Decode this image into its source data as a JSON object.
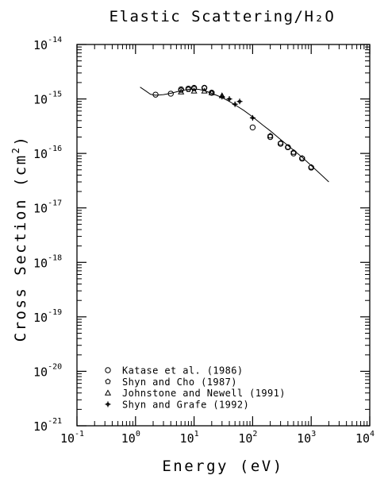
{
  "chart_data": {
    "type": "scatter",
    "title": "Elastic Scattering/H₂O",
    "xlabel": "Energy (eV)",
    "ylabel_prefix": "Cross Section (cm",
    "ylabel_exponent": "2",
    "ylabel_suffix": ")",
    "x_scale": "log",
    "y_scale": "log",
    "xlim": [
      0.1,
      10000
    ],
    "ylim": [
      1e-21,
      1e-14
    ],
    "x_tick_base": "10",
    "x_tick_exponents": [
      "-1",
      "0",
      "1",
      "2",
      "3",
      "4"
    ],
    "y_tick_base": "10",
    "y_tick_exponents": [
      "-21",
      "-20",
      "-19",
      "-18",
      "-17",
      "-16",
      "-15",
      "-14"
    ],
    "grid": false,
    "legend_position": "bottom-left",
    "series": [
      {
        "name": "Katase et al. (1986)",
        "marker": "circle",
        "x": [
          2.2,
          4,
          6,
          8,
          10,
          15,
          20,
          100,
          200,
          300,
          400,
          500,
          700,
          1000
        ],
        "y": [
          1.2e-15,
          1.25e-15,
          1.5e-15,
          1.55e-15,
          1.6e-15,
          1.6e-15,
          1.3e-15,
          3e-16,
          2e-16,
          1.5e-16,
          1.3e-16,
          1e-16,
          8e-17,
          5.5e-17
        ]
      },
      {
        "name": "Shyn and Cho (1987)",
        "marker": "pentagon",
        "x": [
          6,
          8,
          10,
          15,
          20,
          200,
          300,
          400,
          500,
          700,
          1000
        ],
        "y": [
          1.45e-15,
          1.5e-15,
          1.55e-15,
          1.6e-15,
          1.3e-15,
          2.1e-16,
          1.55e-16,
          1.3e-16,
          1.05e-16,
          8.2e-17,
          5.6e-17
        ]
      },
      {
        "name": "Johnstone and Newell (1991)",
        "marker": "triangle",
        "x": [
          6,
          10,
          15,
          20,
          30
        ],
        "y": [
          1.35e-15,
          1.4e-15,
          1.4e-15,
          1.3e-15,
          1.15e-15
        ]
      },
      {
        "name": "Shyn and Grafe (1992)",
        "marker": "plus",
        "x": [
          30,
          40,
          50,
          60,
          100
        ],
        "y": [
          1.1e-15,
          1e-15,
          8e-16,
          9e-16,
          4.5e-16
        ]
      }
    ],
    "fit_curve": {
      "x": [
        1.2,
        1.5,
        1.8,
        2.2,
        3,
        4,
        5,
        6,
        8,
        10,
        12,
        15,
        20,
        25,
        30,
        40,
        50,
        70,
        100,
        150,
        200,
        300,
        400,
        500,
        700,
        1000,
        1500,
        2000
      ],
      "y": [
        1.65e-15,
        1.4e-15,
        1.22e-15,
        1.17e-15,
        1.2e-15,
        1.27e-15,
        1.35e-15,
        1.42e-15,
        1.5e-15,
        1.52e-15,
        1.5e-15,
        1.42e-15,
        1.27e-15,
        1.15e-15,
        1.06e-15,
        9e-16,
        7.8e-16,
        6.2e-16,
        4.7e-16,
        3.3e-16,
        2.6e-16,
        1.8e-16,
        1.4e-16,
        1.15e-16,
        8.5e-17,
        6e-17,
        4e-17,
        3e-17
      ]
    }
  }
}
